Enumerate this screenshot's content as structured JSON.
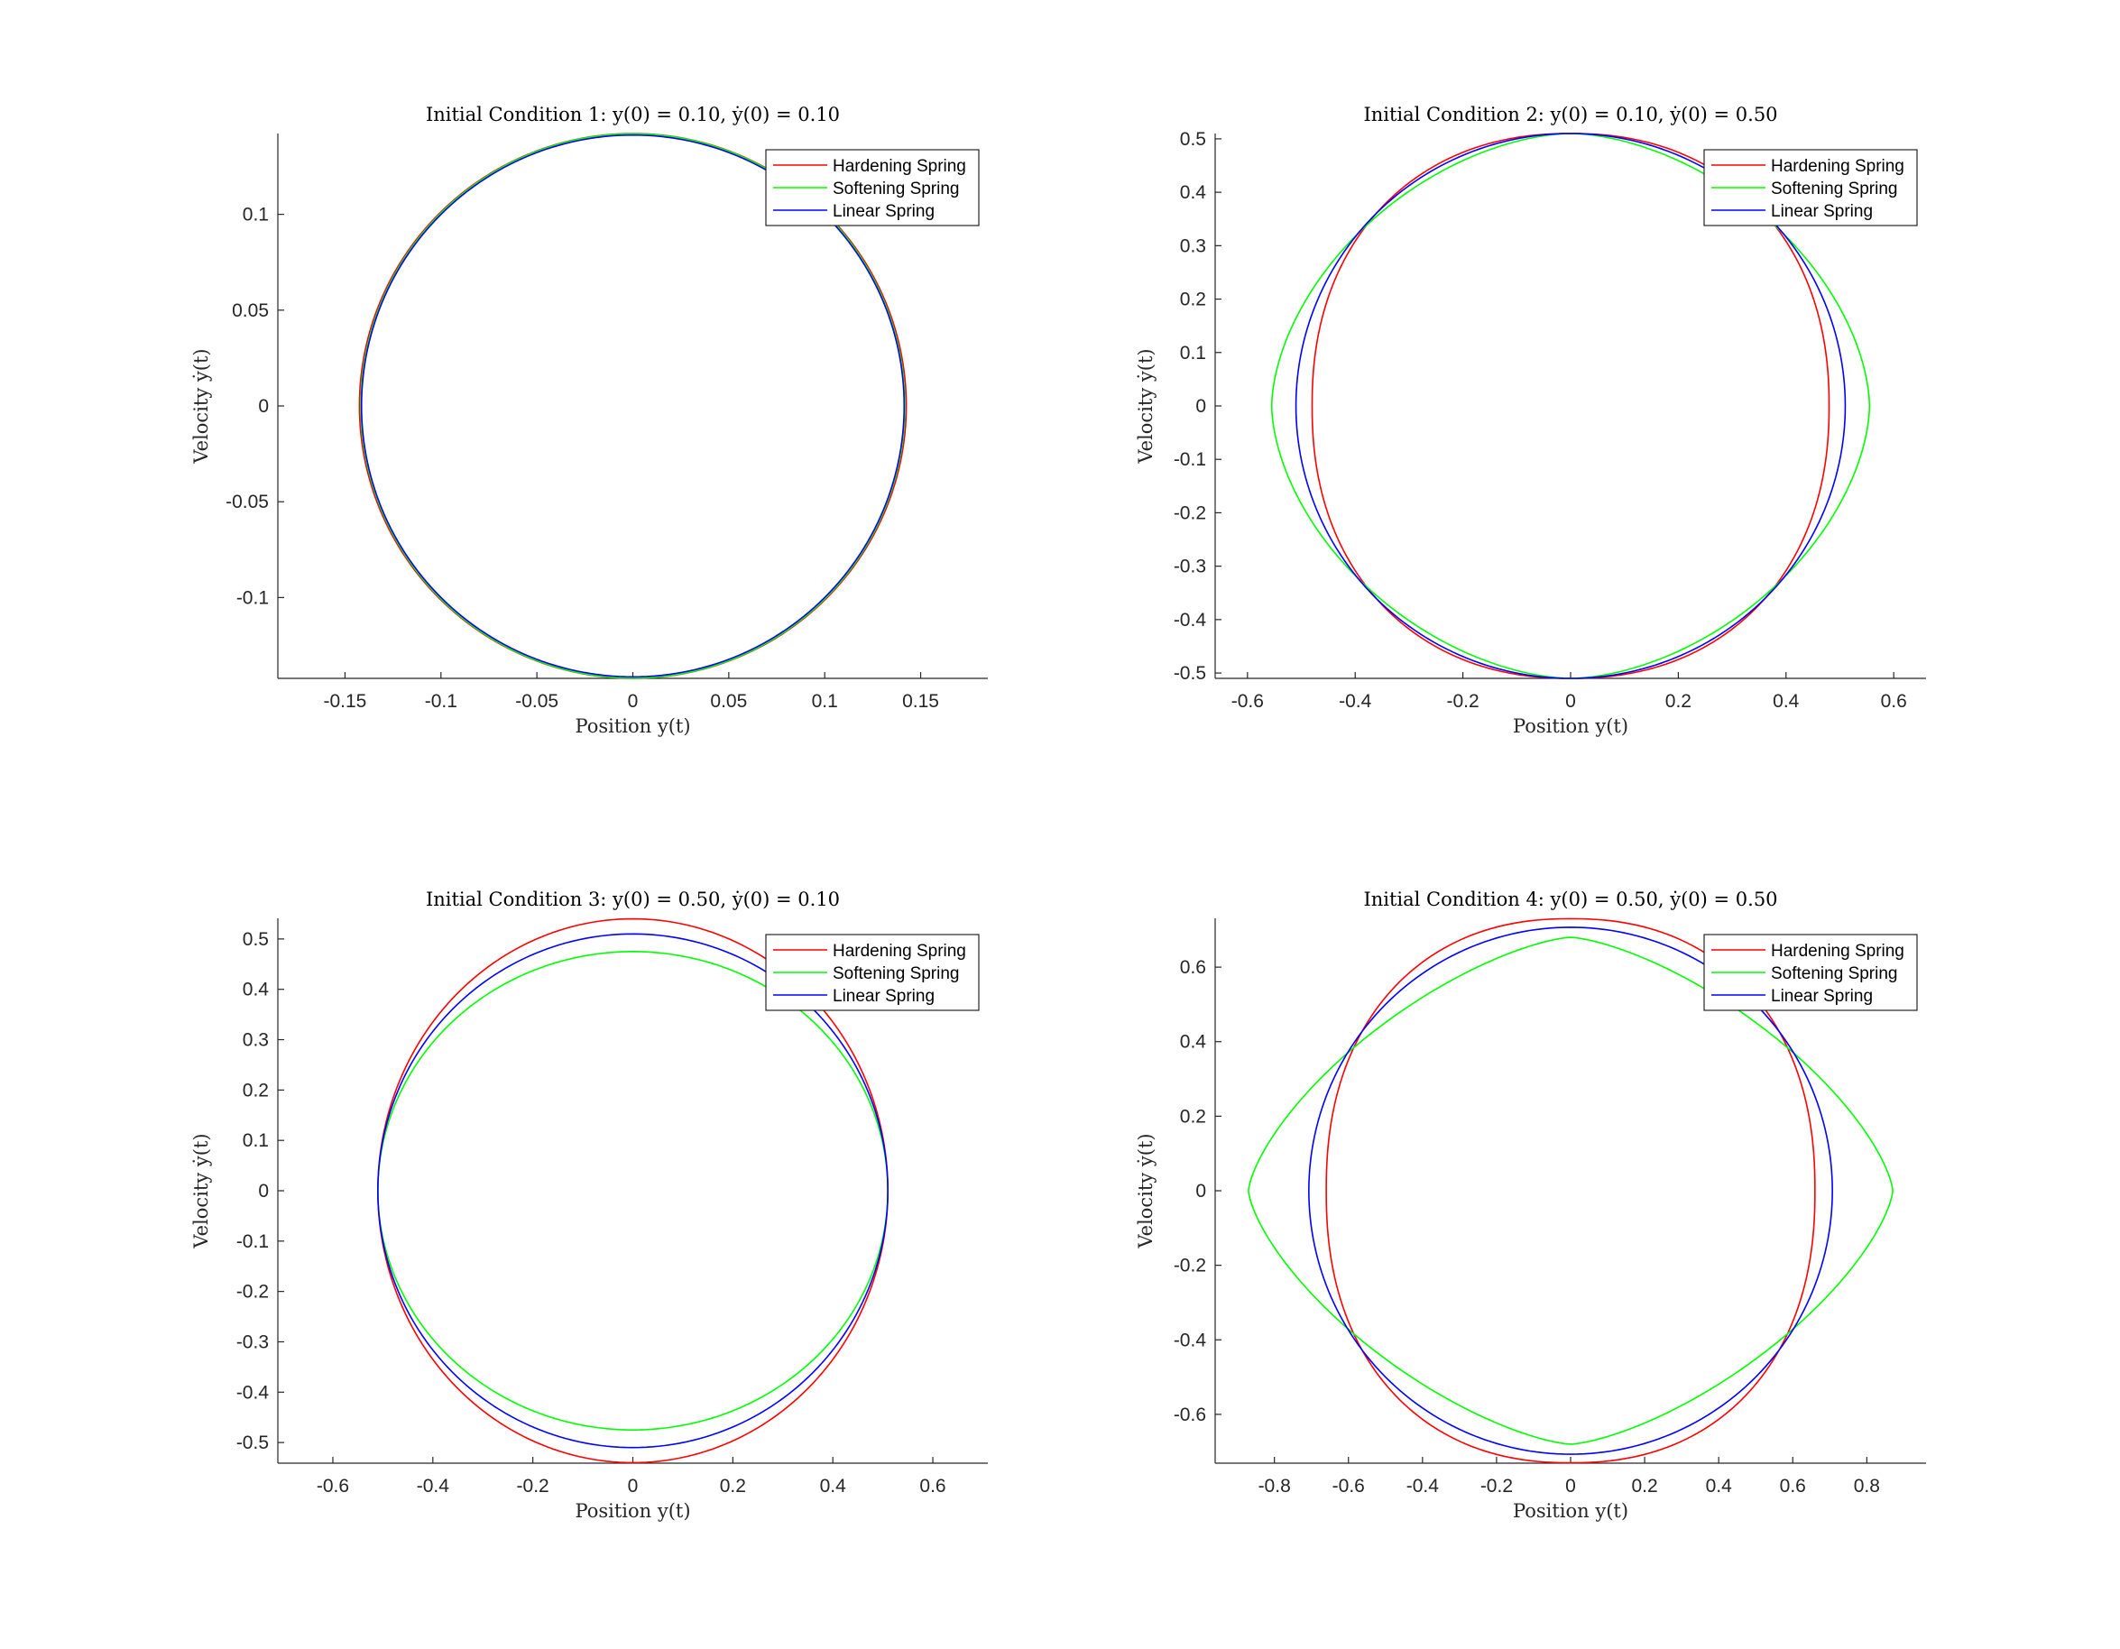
{
  "chart_data": [
    {
      "type": "line",
      "title": "Initial Condition 1: y(0) = 0.10, ẏ(0) = 0.10",
      "xlabel": "Position y(t)",
      "ylabel": "Velocity ẏ(t)",
      "xlim": [
        -0.185,
        0.185
      ],
      "ylim": [
        -0.1422,
        0.1422
      ],
      "xticks": [
        -0.15,
        -0.1,
        -0.05,
        0,
        0.05,
        0.1,
        0.15
      ],
      "xtick_labels": [
        "-0.15",
        "-0.1",
        "-0.05",
        "0",
        "0.05",
        "0.1",
        "0.15"
      ],
      "yticks": [
        -0.1,
        -0.05,
        0,
        0.05,
        0.1
      ],
      "ytick_labels": [
        "-0.1",
        "-0.05",
        "0",
        "0.05",
        "0.1"
      ],
      "grid": false,
      "legend_position": "top-right",
      "series": [
        {
          "name": "Hardening Spring",
          "color": "#ff0000",
          "rx": 0.1425,
          "ry": 0.1422,
          "power": 2.0
        },
        {
          "name": "Softening Spring",
          "color": "#00ff00",
          "rx": 0.1418,
          "ry": 0.1421,
          "power": 2.0
        },
        {
          "name": "Linear Spring",
          "color": "#0000ff",
          "rx": 0.1414,
          "ry": 0.1414,
          "power": 2.0
        }
      ]
    },
    {
      "type": "line",
      "title": "Initial Condition 2: y(0) = 0.10, ẏ(0) = 0.50",
      "xlabel": "Position y(t)",
      "ylabel": "Velocity ẏ(t)",
      "xlim": [
        -0.66,
        0.66
      ],
      "ylim": [
        -0.51,
        0.51
      ],
      "xticks": [
        -0.6,
        -0.4,
        -0.2,
        0,
        0.2,
        0.4,
        0.6
      ],
      "xtick_labels": [
        "-0.6",
        "-0.4",
        "-0.2",
        "0",
        "0.2",
        "0.4",
        "0.6"
      ],
      "yticks": [
        -0.5,
        -0.4,
        -0.3,
        -0.2,
        -0.1,
        0,
        0.1,
        0.2,
        0.3,
        0.4,
        0.5
      ],
      "ytick_labels": [
        "-0.5",
        "-0.4",
        "-0.3",
        "-0.2",
        "-0.1",
        "0",
        "0.1",
        "0.2",
        "0.3",
        "0.4",
        "0.5"
      ],
      "grid": false,
      "legend_position": "top-right",
      "series": [
        {
          "name": "Hardening Spring",
          "color": "#ff0000",
          "rx": 0.48,
          "ry": 0.51,
          "power": 2.2
        },
        {
          "name": "Softening Spring",
          "color": "#00ff00",
          "rx": 0.555,
          "ry": 0.51,
          "power": 1.75
        },
        {
          "name": "Linear Spring",
          "color": "#0000ff",
          "rx": 0.51,
          "ry": 0.51,
          "power": 2.0
        }
      ]
    },
    {
      "type": "line",
      "title": "Initial Condition 3: y(0) = 0.50, ẏ(0) = 0.10",
      "xlabel": "Position y(t)",
      "ylabel": "Velocity ẏ(t)",
      "xlim": [
        -0.71,
        0.71
      ],
      "ylim": [
        -0.541,
        0.541
      ],
      "xticks": [
        -0.6,
        -0.4,
        -0.2,
        0,
        0.2,
        0.4,
        0.6
      ],
      "xtick_labels": [
        "-0.6",
        "-0.4",
        "-0.2",
        "0",
        "0.2",
        "0.4",
        "0.6"
      ],
      "yticks": [
        -0.5,
        -0.4,
        -0.3,
        -0.2,
        -0.1,
        0,
        0.1,
        0.2,
        0.3,
        0.4,
        0.5
      ],
      "ytick_labels": [
        "-0.5",
        "-0.4",
        "-0.3",
        "-0.2",
        "-0.1",
        "0",
        "0.1",
        "0.2",
        "0.3",
        "0.4",
        "0.5"
      ],
      "grid": false,
      "legend_position": "top-right",
      "series": [
        {
          "name": "Hardening Spring",
          "color": "#ff0000",
          "rx": 0.51,
          "ry": 0.54,
          "power": 2.0
        },
        {
          "name": "Softening Spring",
          "color": "#00ff00",
          "rx": 0.51,
          "ry": 0.475,
          "power": 2.0
        },
        {
          "name": "Linear Spring",
          "color": "#0000ff",
          "rx": 0.51,
          "ry": 0.51,
          "power": 2.0
        }
      ]
    },
    {
      "type": "line",
      "title": "Initial Condition 4: y(0) = 0.50, ẏ(0) = 0.50",
      "xlabel": "Position y(t)",
      "ylabel": "Velocity ẏ(t)",
      "xlim": [
        -0.96,
        0.96
      ],
      "ylim": [
        -0.731,
        0.731
      ],
      "xticks": [
        -0.8,
        -0.6,
        -0.4,
        -0.2,
        0,
        0.2,
        0.4,
        0.6,
        0.8
      ],
      "xtick_labels": [
        "-0.8",
        "-0.6",
        "-0.4",
        "-0.2",
        "0",
        "0.2",
        "0.4",
        "0.6",
        "0.8"
      ],
      "yticks": [
        -0.6,
        -0.4,
        -0.2,
        0,
        0.2,
        0.4,
        0.6
      ],
      "ytick_labels": [
        "-0.6",
        "-0.4",
        "-0.2",
        "0",
        "0.2",
        "0.4",
        "0.6"
      ],
      "grid": false,
      "legend_position": "top-right",
      "series": [
        {
          "name": "Hardening Spring",
          "color": "#ff0000",
          "rx": 0.66,
          "ry": 0.73,
          "power": 2.25
        },
        {
          "name": "Softening Spring",
          "color": "#00ff00",
          "rx": 0.87,
          "ry": 0.68,
          "power": 1.45
        },
        {
          "name": "Linear Spring",
          "color": "#0000ff",
          "rx": 0.707,
          "ry": 0.707,
          "power": 2.0
        }
      ]
    }
  ]
}
